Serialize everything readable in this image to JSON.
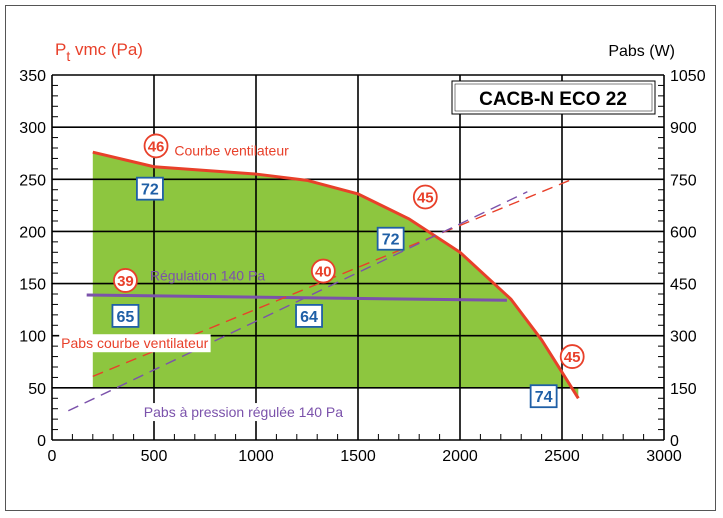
{
  "chart_data": {
    "type": "area",
    "title_box": "CACB-N ECO 22",
    "ylabel": "P",
    "ylabel_sub": "t",
    "ylabel_rest": " vmc (Pa)",
    "y2label": "Pabs (W)",
    "xlim": [
      0,
      3000
    ],
    "ylim": [
      0,
      350
    ],
    "y2lim": [
      0,
      1050
    ],
    "x_ticks": [
      "0",
      "500",
      "1000",
      "1500",
      "2000",
      "2500",
      "3000"
    ],
    "y_ticks": [
      "0",
      "50",
      "100",
      "150",
      "200",
      "250",
      "300",
      "350"
    ],
    "y2_ticks": [
      "0",
      "150",
      "300",
      "450",
      "600",
      "750",
      "900",
      "1050"
    ],
    "grid": true,
    "colors": {
      "fill": "#8dc63f",
      "fan_curve": "#e8402a",
      "regulation": "#7b52ab",
      "box_blue": "#1f5fa6",
      "circle_red": "#e8402a"
    },
    "series": [
      {
        "name": "Courbe ventilateur",
        "style": "solid",
        "points": [
          [
            200,
            276
          ],
          [
            500,
            262
          ],
          [
            1000,
            255
          ],
          [
            1250,
            249
          ],
          [
            1500,
            236
          ],
          [
            1750,
            212
          ],
          [
            2000,
            180
          ],
          [
            2250,
            135
          ],
          [
            2400,
            96
          ],
          [
            2500,
            65
          ],
          [
            2580,
            40
          ]
        ]
      },
      {
        "name": "Régulation 140 Pa",
        "style": "solid",
        "points": [
          [
            170,
            139
          ],
          [
            2230,
            134
          ]
        ]
      },
      {
        "name": "Pabs courbe ventilateur",
        "style": "dashed",
        "axis": "y2",
        "points": [
          [
            200,
            183
          ],
          [
            2550,
            750
          ]
        ]
      },
      {
        "name": "Pabs à pression régulée 140 Pa",
        "style": "dashed",
        "axis": "y2",
        "points": [
          [
            80,
            84
          ],
          [
            2330,
            714
          ]
        ]
      }
    ],
    "operating_area": {
      "upper": [
        [
          200,
          276
        ],
        [
          500,
          262
        ],
        [
          1000,
          255
        ],
        [
          1250,
          249
        ],
        [
          1500,
          236
        ],
        [
          1750,
          212
        ],
        [
          2000,
          180
        ],
        [
          2250,
          135
        ],
        [
          2400,
          96
        ],
        [
          2500,
          65
        ],
        [
          2580,
          40
        ]
      ],
      "lower_y": 50,
      "x_start": 200
    },
    "annotations": {
      "circles": [
        {
          "text": "46",
          "x": 510,
          "y": 282
        },
        {
          "text": "45",
          "x": 1830,
          "y": 233
        },
        {
          "text": "40",
          "x": 1330,
          "y": 162
        },
        {
          "text": "39",
          "x": 360,
          "y": 153
        },
        {
          "text": "45",
          "x": 2550,
          "y": 80
        }
      ],
      "boxes": [
        {
          "text": "72",
          "x": 480,
          "y": 241
        },
        {
          "text": "72",
          "x": 1660,
          "y": 193
        },
        {
          "text": "65",
          "x": 360,
          "y": 119
        },
        {
          "text": "64",
          "x": 1260,
          "y": 119
        },
        {
          "text": "74",
          "x": 2410,
          "y": 42
        }
      ],
      "texts": [
        {
          "text": "Courbe ventilateur",
          "x": 600,
          "y": 273,
          "color": "#e8402a"
        },
        {
          "text": "Régulation 140 Pa",
          "x": 480,
          "y": 153,
          "color": "#7b52ab"
        },
        {
          "text": "Pabs courbe ventilateur",
          "x": 45,
          "y": 88,
          "color": "#e8402a"
        },
        {
          "text": "Pabs à pression régulée 140 Pa",
          "x": 450,
          "y": 22,
          "color": "#7b52ab"
        }
      ]
    }
  }
}
